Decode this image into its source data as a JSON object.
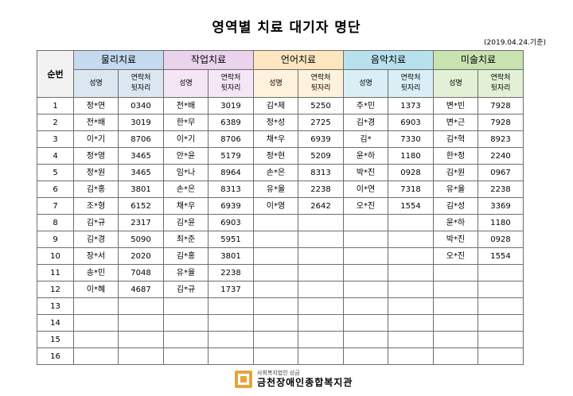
{
  "title": "영역별 치료 대기자 명단",
  "date": "(2019.04.24.기준)",
  "seq_header": "순번",
  "name_label": "성명",
  "phone_label": "연락처\n뒷자리",
  "groups": [
    {
      "label": "물리치료",
      "color": "#c5d9f1",
      "sub_color": "#dce6f1"
    },
    {
      "label": "작업치료",
      "color": "#ebd3ed",
      "sub_color": "#f4e6f5"
    },
    {
      "label": "언어치료",
      "color": "#fde6c0",
      "sub_color": "#fef2dc"
    },
    {
      "label": "음악치료",
      "color": "#b7e1ec",
      "sub_color": "#d9eff5"
    },
    {
      "label": "미술치료",
      "color": "#c8e2b0",
      "sub_color": "#e2f0d5"
    }
  ],
  "rows": [
    {
      "no": "1",
      "cells": [
        [
          "정*연",
          "0340"
        ],
        [
          "전*배",
          "3019"
        ],
        [
          "김*제",
          "5250"
        ],
        [
          "주*민",
          "1373"
        ],
        [
          "변*빈",
          "7928"
        ]
      ]
    },
    {
      "no": "2",
      "cells": [
        [
          "전*배",
          "3019"
        ],
        [
          "한*무",
          "6389"
        ],
        [
          "정*성",
          "2725"
        ],
        [
          "김*경",
          "6903"
        ],
        [
          "변*근",
          "7928"
        ]
      ]
    },
    {
      "no": "3",
      "cells": [
        [
          "이*기",
          "8706"
        ],
        [
          "이*기",
          "8706"
        ],
        [
          "채*우",
          "6939"
        ],
        [
          "김*",
          "7330"
        ],
        [
          "김*혁",
          "8923"
        ]
      ]
    },
    {
      "no": "4",
      "cells": [
        [
          "정*영",
          "3465"
        ],
        [
          "안*윤",
          "5179"
        ],
        [
          "정*현",
          "5209"
        ],
        [
          "윤*하",
          "1180"
        ],
        [
          "한*정",
          "2240"
        ]
      ]
    },
    {
      "no": "5",
      "cells": [
        [
          "정*원",
          "3465"
        ],
        [
          "임*나",
          "8964"
        ],
        [
          "손*은",
          "8313"
        ],
        [
          "박*진",
          "0928"
        ],
        [
          "김*원",
          "0967"
        ]
      ]
    },
    {
      "no": "6",
      "cells": [
        [
          "김*홍",
          "3801"
        ],
        [
          "손*은",
          "8313"
        ],
        [
          "유*율",
          "2238"
        ],
        [
          "이*연",
          "7318"
        ],
        [
          "유*율",
          "2238"
        ]
      ]
    },
    {
      "no": "7",
      "cells": [
        [
          "조*형",
          "6152"
        ],
        [
          "채*우",
          "6939"
        ],
        [
          "이*영",
          "2642"
        ],
        [
          "오*진",
          "1554"
        ],
        [
          "김*성",
          "3369"
        ]
      ]
    },
    {
      "no": "8",
      "cells": [
        [
          "김*규",
          "2317"
        ],
        [
          "김*윤",
          "6903"
        ],
        [
          "",
          ""
        ],
        [
          "",
          ""
        ],
        [
          "윤*하",
          "1180"
        ]
      ]
    },
    {
      "no": "9",
      "cells": [
        [
          "김*경",
          "5090"
        ],
        [
          "최*준",
          "5951"
        ],
        [
          "",
          ""
        ],
        [
          "",
          ""
        ],
        [
          "박*진",
          "0928"
        ]
      ]
    },
    {
      "no": "10",
      "cells": [
        [
          "장*서",
          "2020"
        ],
        [
          "김*홍",
          "3801"
        ],
        [
          "",
          ""
        ],
        [
          "",
          ""
        ],
        [
          "오*진",
          "1554"
        ]
      ]
    },
    {
      "no": "11",
      "cells": [
        [
          "송*민",
          "7048"
        ],
        [
          "유*율",
          "2238"
        ],
        [
          "",
          ""
        ],
        [
          "",
          ""
        ],
        [
          "",
          ""
        ]
      ]
    },
    {
      "no": "12",
      "cells": [
        [
          "이*혜",
          "4687"
        ],
        [
          "김*규",
          "1737"
        ],
        [
          "",
          ""
        ],
        [
          "",
          ""
        ],
        [
          "",
          ""
        ]
      ]
    },
    {
      "no": "13",
      "cells": [
        [
          "",
          ""
        ],
        [
          "",
          ""
        ],
        [
          "",
          ""
        ],
        [
          "",
          ""
        ],
        [
          "",
          ""
        ]
      ]
    },
    {
      "no": "14",
      "cells": [
        [
          "",
          ""
        ],
        [
          "",
          ""
        ],
        [
          "",
          ""
        ],
        [
          "",
          ""
        ],
        [
          "",
          ""
        ]
      ]
    },
    {
      "no": "15",
      "cells": [
        [
          "",
          ""
        ],
        [
          "",
          ""
        ],
        [
          "",
          ""
        ],
        [
          "",
          ""
        ],
        [
          "",
          ""
        ]
      ]
    },
    {
      "no": "16",
      "cells": [
        [
          "",
          ""
        ],
        [
          "",
          ""
        ],
        [
          "",
          ""
        ],
        [
          "",
          ""
        ],
        [
          "",
          ""
        ]
      ]
    }
  ],
  "footer": {
    "org_sub": "사회복지법인 상금",
    "org_name": "금천장애인종합복지관",
    "logo_icon": "org-logo-icon",
    "logo_color": "#e8a33c"
  }
}
